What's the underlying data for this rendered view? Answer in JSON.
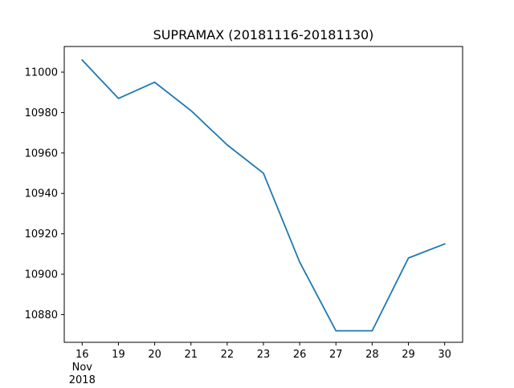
{
  "chart_data": {
    "type": "line",
    "title": "SUPRAMAX (20181116-20181130)",
    "xlabel": "",
    "ylabel": "",
    "x": [
      "16",
      "19",
      "20",
      "21",
      "22",
      "23",
      "26",
      "27",
      "28",
      "29",
      "30"
    ],
    "x_sublabel_lines": [
      "Nov",
      "2018"
    ],
    "series": [
      {
        "values": [
          11006,
          10987,
          10995,
          10981,
          10964,
          10950,
          10906,
          10872,
          10872,
          10908,
          10915
        ],
        "color": "#1f77b4"
      }
    ],
    "ylim": [
      10866.3,
      11012.7
    ],
    "yticks": [
      10880,
      10900,
      10920,
      10940,
      10960,
      10980,
      11000
    ],
    "grid": false,
    "legend": "none"
  }
}
